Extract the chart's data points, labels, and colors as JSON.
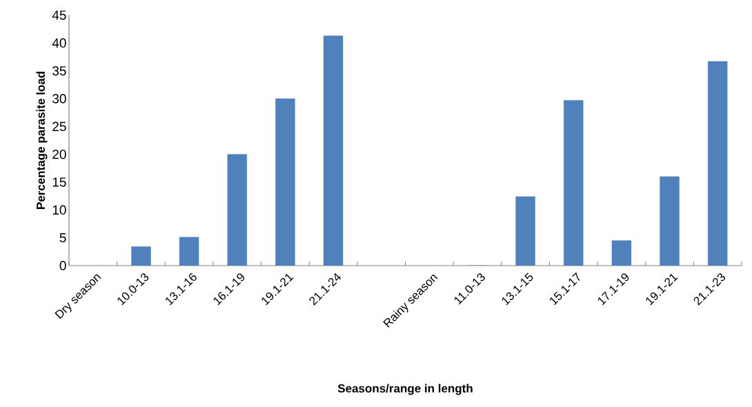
{
  "chart_data": {
    "type": "bar",
    "xlabel": "Seasons/range in length",
    "ylabel": "Percentage parasite load",
    "categories": [
      "Dry season",
      "10.0-13",
      "13.1-16",
      "16.1-19",
      "19.1-21",
      "21.1-24",
      null,
      "Rainy season",
      "11.0-13",
      "13.1-15",
      "15.1-17",
      "17.1-19",
      "19.1-21",
      "21.1-23"
    ],
    "values": [
      null,
      3.4,
      5.1,
      20,
      30,
      41.3,
      null,
      null,
      0,
      12.4,
      29.7,
      4.5,
      16,
      36.7
    ],
    "color": "#4f81bd",
    "ylim": [
      0,
      45
    ],
    "yticks": [
      0,
      5,
      10,
      15,
      20,
      25,
      30,
      35,
      40,
      45
    ],
    "grid": false
  }
}
